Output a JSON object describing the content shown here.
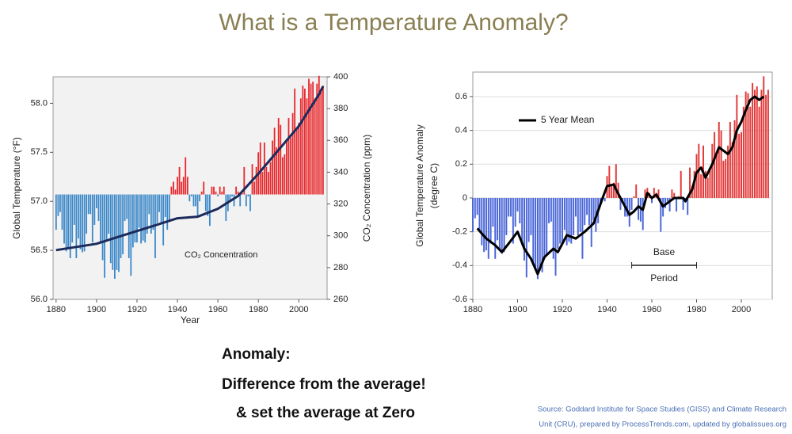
{
  "slide": {
    "title": "What is a Temperature Anomaly?",
    "text": [
      "Anomaly:",
      "Difference from the average!",
      "& set the average at Zero"
    ],
    "source": [
      "Source: Goddard Institute for Space Studies (GISS) and Climate Research",
      "Unit (CRU), prepared by ProcessTrends.com, updated by globalissues.org"
    ]
  },
  "chart_data": [
    {
      "type": "bar",
      "xlabel": "Year",
      "ylabel": "Global Temperature (°F)",
      "y2label": "CO₂ Concentration (ppm)",
      "annotation": "CO₂ Concentration",
      "xlim": [
        1878.5,
        2014
      ],
      "xticks": [
        1880,
        1900,
        1920,
        1940,
        1960,
        1980,
        2000
      ],
      "ylim": [
        56.0,
        58.27
      ],
      "yticks": [
        {
          "value": 56.0,
          "label": "56.0"
        },
        {
          "value": 56.5,
          "label": "56.5"
        },
        {
          "value": 57.0,
          "label": "57.0"
        },
        {
          "value": 57.5,
          "label": "57.5"
        },
        {
          "value": 58.0,
          "label": "58.0"
        }
      ],
      "y2lim": [
        260,
        400
      ],
      "y2ticks": [
        260,
        280,
        300,
        320,
        340,
        360,
        380,
        400
      ],
      "bar_base": 57.07,
      "colors": {
        "above": "#e8262b",
        "below": "#3a87c8"
      },
      "grid": false,
      "x": [
        1880,
        1881,
        1882,
        1883,
        1884,
        1885,
        1886,
        1887,
        1888,
        1889,
        1890,
        1891,
        1892,
        1893,
        1894,
        1895,
        1896,
        1897,
        1898,
        1899,
        1900,
        1901,
        1902,
        1903,
        1904,
        1905,
        1906,
        1907,
        1908,
        1909,
        1910,
        1911,
        1912,
        1913,
        1914,
        1915,
        1916,
        1917,
        1918,
        1919,
        1920,
        1921,
        1922,
        1923,
        1924,
        1925,
        1926,
        1927,
        1928,
        1929,
        1930,
        1931,
        1932,
        1933,
        1934,
        1935,
        1936,
        1937,
        1938,
        1939,
        1940,
        1941,
        1942,
        1943,
        1944,
        1945,
        1946,
        1947,
        1948,
        1949,
        1950,
        1951,
        1952,
        1953,
        1954,
        1955,
        1956,
        1957,
        1958,
        1959,
        1960,
        1961,
        1962,
        1963,
        1964,
        1965,
        1966,
        1967,
        1968,
        1969,
        1970,
        1971,
        1972,
        1973,
        1974,
        1975,
        1976,
        1977,
        1978,
        1979,
        1980,
        1981,
        1982,
        1983,
        1984,
        1985,
        1986,
        1987,
        1988,
        1989,
        1990,
        1991,
        1992,
        1993,
        1994,
        1995,
        1996,
        1997,
        1998,
        1999,
        2000,
        2001,
        2002,
        2003,
        2004,
        2005,
        2006,
        2007,
        2008,
        2009,
        2010,
        2011,
        2012
      ],
      "values": [
        56.71,
        56.85,
        56.89,
        56.71,
        56.57,
        56.49,
        56.51,
        56.42,
        56.58,
        56.76,
        56.42,
        56.62,
        56.51,
        56.48,
        56.49,
        56.67,
        56.87,
        56.87,
        56.58,
        56.76,
        56.93,
        56.8,
        56.57,
        56.4,
        56.22,
        56.6,
        56.67,
        56.37,
        56.3,
        56.21,
        56.3,
        56.28,
        56.42,
        56.46,
        56.8,
        56.82,
        56.42,
        56.24,
        56.53,
        56.58,
        56.58,
        56.73,
        56.57,
        56.6,
        56.58,
        56.67,
        56.87,
        56.67,
        56.71,
        56.42,
        56.78,
        56.89,
        56.78,
        56.55,
        56.84,
        56.71,
        56.8,
        57.15,
        57.2,
        57.12,
        57.25,
        57.35,
        57.2,
        57.25,
        57.45,
        57.25,
        57.0,
        57.05,
        56.95,
        56.95,
        56.85,
        57.0,
        57.1,
        57.2,
        56.9,
        56.85,
        56.75,
        57.15,
        57.15,
        57.1,
        57.05,
        57.15,
        57.1,
        57.15,
        56.8,
        56.9,
        57.0,
        57.05,
        56.95,
        57.15,
        57.1,
        56.95,
        57.08,
        57.35,
        56.95,
        57.05,
        56.9,
        57.38,
        57.2,
        57.35,
        57.5,
        57.6,
        57.3,
        57.6,
        57.35,
        57.3,
        57.4,
        57.62,
        57.75,
        57.55,
        57.85,
        57.78,
        57.45,
        57.48,
        57.62,
        57.85,
        57.65,
        57.9,
        58.15,
        57.75,
        57.8,
        58.05,
        58.18,
        58.15,
        58.05,
        58.25,
        58.2,
        58.22,
        58.05,
        58.2,
        58.28,
        58.15,
        58.18
      ],
      "lines": [
        {
          "x": [
            1880,
            1900,
            1910,
            1920,
            1930,
            1940,
            1950,
            1960,
            1970,
            1980,
            1990,
            2000,
            2010,
            2012
          ],
          "values": [
            291,
            295,
            299,
            303,
            307,
            311,
            312,
            317,
            325,
            339,
            354,
            369,
            389,
            394
          ],
          "color": "#1c2a5c",
          "axis": "y2",
          "width": 3
        }
      ]
    },
    {
      "type": "bar",
      "ylabel": [
        "Global Temperature Anomaly",
        "(degree C)"
      ],
      "annotation": [
        "Base",
        "Period"
      ],
      "base_period": [
        1951,
        1980
      ],
      "xlim": [
        1880,
        2013.8
      ],
      "xticks": [
        1880,
        1900,
        1920,
        1940,
        1960,
        1980,
        2000
      ],
      "ylim": [
        -0.6,
        0.745
      ],
      "yticks": [
        -0.6,
        -0.4,
        -0.2,
        0,
        0.2,
        0.4,
        0.6
      ],
      "bar_base": 0,
      "colors": {
        "above": "#e23a3a",
        "below": "#4a66d8"
      },
      "grid": true,
      "legend": "top-left",
      "x": [
        1880,
        1881,
        1882,
        1883,
        1884,
        1885,
        1886,
        1887,
        1888,
        1889,
        1890,
        1891,
        1892,
        1893,
        1894,
        1895,
        1896,
        1897,
        1898,
        1899,
        1900,
        1901,
        1902,
        1903,
        1904,
        1905,
        1906,
        1907,
        1908,
        1909,
        1910,
        1911,
        1912,
        1913,
        1914,
        1915,
        1916,
        1917,
        1918,
        1919,
        1920,
        1921,
        1922,
        1923,
        1924,
        1925,
        1926,
        1927,
        1928,
        1929,
        1930,
        1931,
        1932,
        1933,
        1934,
        1935,
        1936,
        1937,
        1938,
        1939,
        1940,
        1941,
        1942,
        1943,
        1944,
        1945,
        1946,
        1947,
        1948,
        1949,
        1950,
        1951,
        1952,
        1953,
        1954,
        1955,
        1956,
        1957,
        1958,
        1959,
        1960,
        1961,
        1962,
        1963,
        1964,
        1965,
        1966,
        1967,
        1968,
        1969,
        1970,
        1971,
        1972,
        1973,
        1974,
        1975,
        1976,
        1977,
        1978,
        1979,
        1980,
        1981,
        1982,
        1983,
        1984,
        1985,
        1986,
        1987,
        1988,
        1989,
        1990,
        1991,
        1992,
        1993,
        1994,
        1995,
        1996,
        1997,
        1998,
        1999,
        2000,
        2001,
        2002,
        2003,
        2004,
        2005,
        2006,
        2007,
        2008,
        2009,
        2010,
        2011,
        2012
      ],
      "values": [
        -0.2,
        -0.12,
        -0.1,
        -0.2,
        -0.28,
        -0.32,
        -0.31,
        -0.36,
        -0.27,
        -0.17,
        -0.36,
        -0.25,
        -0.31,
        -0.33,
        -0.32,
        -0.22,
        -0.11,
        -0.11,
        -0.27,
        -0.17,
        -0.08,
        -0.15,
        -0.28,
        -0.37,
        -0.47,
        -0.26,
        -0.22,
        -0.39,
        -0.43,
        -0.48,
        -0.43,
        -0.44,
        -0.36,
        -0.34,
        -0.15,
        -0.14,
        -0.36,
        -0.46,
        -0.3,
        -0.27,
        -0.27,
        -0.19,
        -0.28,
        -0.26,
        -0.27,
        -0.22,
        -0.11,
        -0.22,
        -0.2,
        -0.36,
        -0.16,
        -0.1,
        -0.16,
        -0.29,
        -0.13,
        -0.2,
        -0.15,
        -0.03,
        -0.01,
        -0.02,
        0.13,
        0.19,
        0.07,
        0.09,
        0.2,
        0.09,
        -0.07,
        -0.03,
        -0.11,
        -0.11,
        -0.17,
        -0.07,
        0.01,
        0.08,
        -0.13,
        -0.14,
        -0.19,
        0.05,
        0.06,
        0.03,
        -0.03,
        0.06,
        0.03,
        0.05,
        -0.2,
        -0.11,
        -0.06,
        -0.02,
        -0.08,
        0.05,
        0.03,
        -0.08,
        0.01,
        0.16,
        -0.07,
        -0.01,
        -0.1,
        0.18,
        0.07,
        0.16,
        0.26,
        0.32,
        0.14,
        0.31,
        0.16,
        0.12,
        0.18,
        0.32,
        0.39,
        0.27,
        0.45,
        0.4,
        0.22,
        0.23,
        0.31,
        0.45,
        0.33,
        0.46,
        0.61,
        0.38,
        0.39,
        0.54,
        0.63,
        0.62,
        0.54,
        0.68,
        0.64,
        0.66,
        0.54,
        0.64,
        0.72,
        0.61,
        0.64
      ],
      "lines": [
        {
          "name": "5 Year Mean",
          "x": [
            1882,
            1886,
            1890,
            1893,
            1896,
            1900,
            1903,
            1906,
            1909,
            1912,
            1916,
            1918,
            1922,
            1926,
            1930,
            1934,
            1938,
            1940,
            1943,
            1944,
            1948,
            1950,
            1952,
            1954,
            1956,
            1958,
            1960,
            1962,
            1965,
            1968,
            1970,
            1974,
            1975,
            1978,
            1980,
            1982,
            1984,
            1987,
            1990,
            1992,
            1994,
            1996,
            1998,
            2000,
            2002,
            2004,
            2006,
            2008,
            2010
          ],
          "values": [
            -0.18,
            -0.24,
            -0.28,
            -0.32,
            -0.27,
            -0.2,
            -0.3,
            -0.36,
            -0.45,
            -0.35,
            -0.3,
            -0.32,
            -0.22,
            -0.24,
            -0.2,
            -0.15,
            0.0,
            0.07,
            0.08,
            0.05,
            -0.05,
            -0.1,
            -0.08,
            -0.05,
            -0.07,
            0.03,
            0.0,
            0.02,
            -0.05,
            -0.02,
            0.0,
            0.0,
            -0.02,
            0.05,
            0.15,
            0.18,
            0.12,
            0.2,
            0.3,
            0.28,
            0.26,
            0.3,
            0.4,
            0.45,
            0.52,
            0.58,
            0.6,
            0.58,
            0.6
          ],
          "color": "#000",
          "width": 3
        }
      ]
    }
  ]
}
